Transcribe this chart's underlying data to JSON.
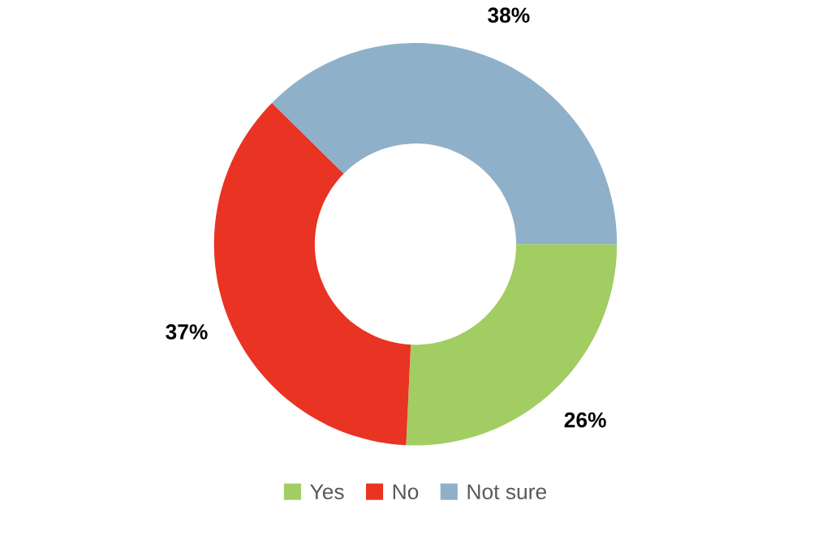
{
  "chart_data": {
    "type": "donut",
    "categories": [
      "Yes",
      "No",
      "Not sure"
    ],
    "values": [
      26,
      37,
      38
    ],
    "value_labels": [
      "26%",
      "37%",
      "38%"
    ],
    "colors": [
      "#a2cd62",
      "#e93323",
      "#8fb0c9"
    ],
    "legend": "bottom"
  }
}
